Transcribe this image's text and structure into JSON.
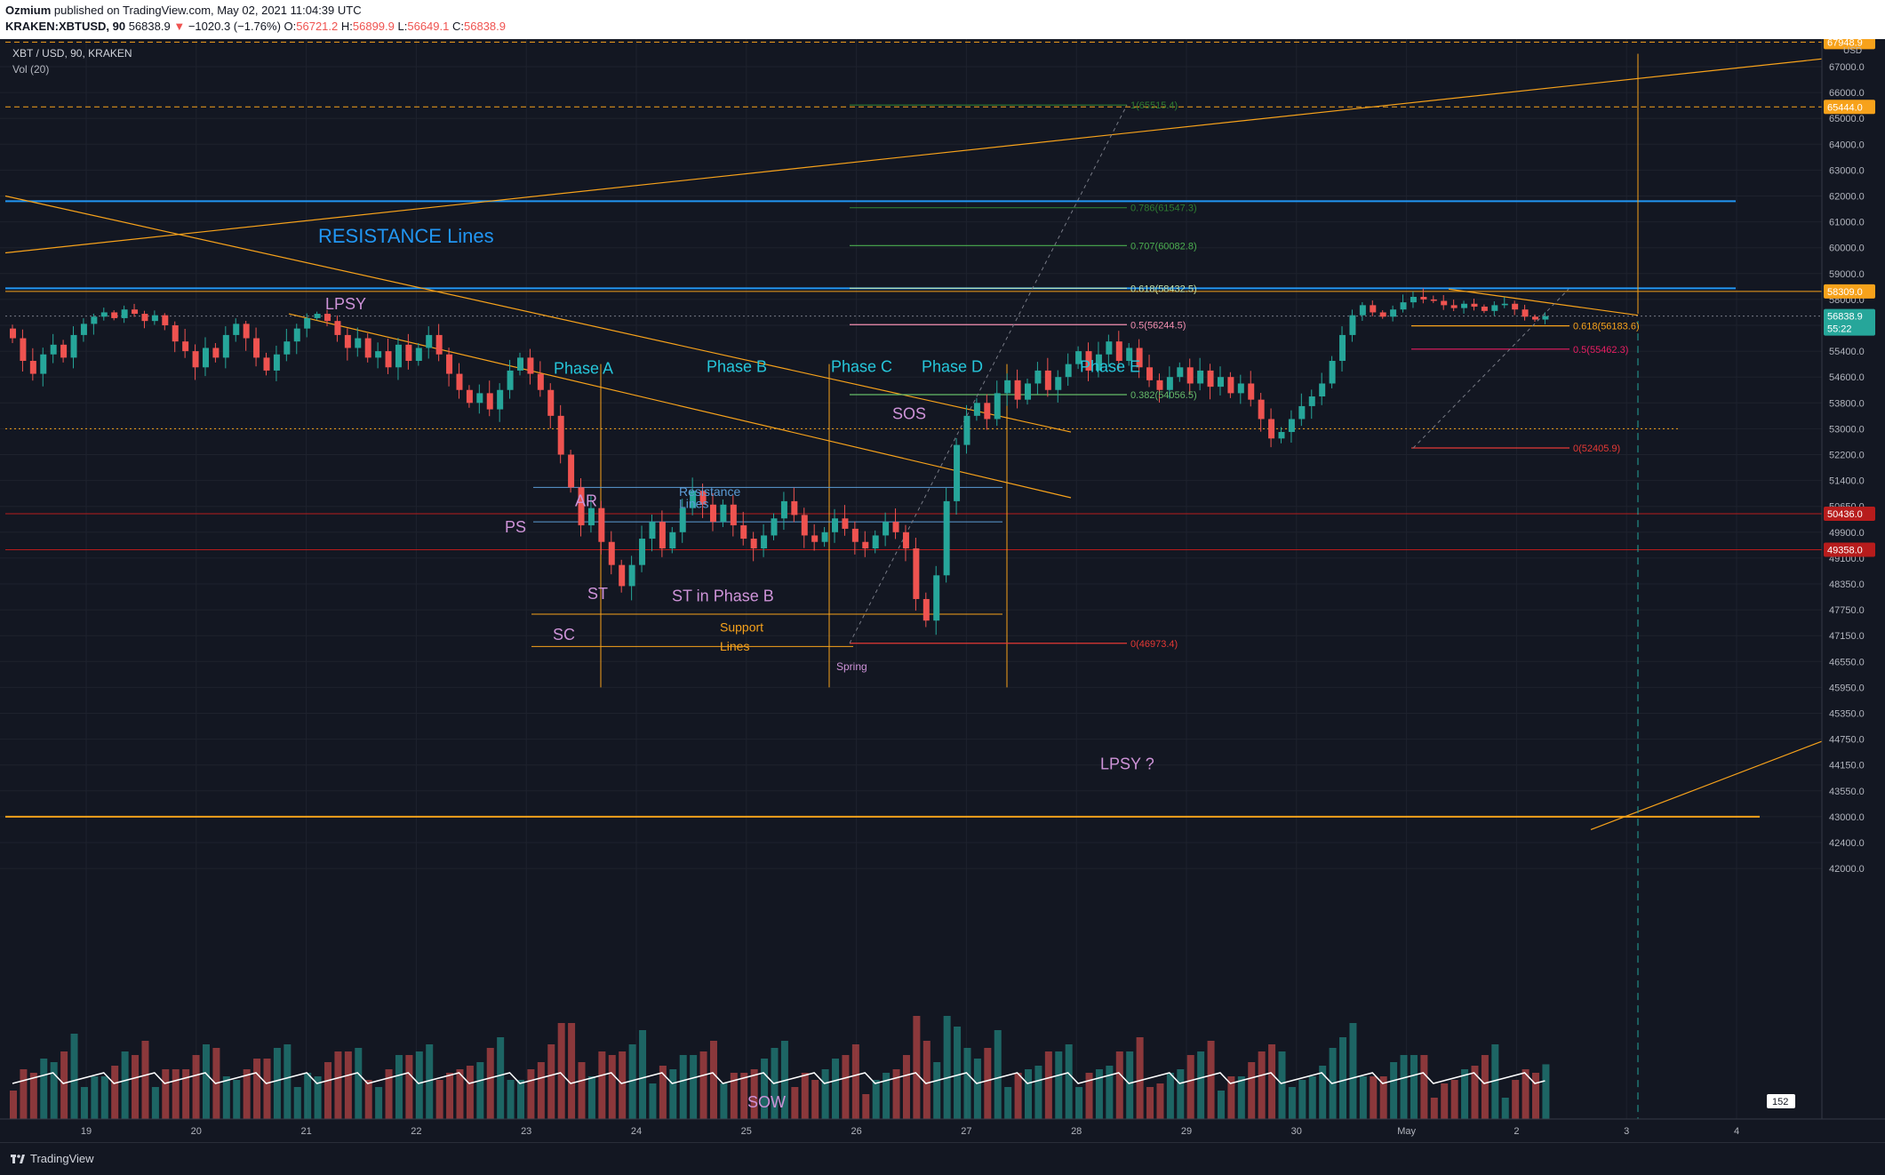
{
  "header": {
    "author": "Ozmium",
    "published_text": "published on TradingView.com, May 02, 2021 11:04:39 UTC",
    "symbol": "KRAKEN:XBTUSD, 90",
    "last_price": "56838.9",
    "change_arrow": "▼",
    "change": "−1020.3 (−1.76%)",
    "open_label": "O:",
    "open": "56721.2",
    "high_label": "H:",
    "high": "56899.9",
    "low_label": "L:",
    "low": "56649.1",
    "close_label": "C:",
    "close": "56838.9"
  },
  "chart_legend": {
    "title": "XBT / USD, 90, KRAKEN",
    "volume_label": "Vol (20)",
    "currency": "USD"
  },
  "footer": {
    "brand": "TradingView"
  },
  "colors": {
    "background": "#131722",
    "up": "#26a69a",
    "down": "#ef5350",
    "orange": "#f7a21b",
    "blue": "#2196f3",
    "purple": "#ce93d8",
    "teal_label": "#26c6da"
  },
  "chart_data": {
    "type": "candlestick",
    "price_axis_ticks": [
      67000,
      66000,
      65000,
      64000,
      63000,
      62000,
      61000,
      60000,
      59000,
      58000,
      56200,
      55400,
      54600,
      53800,
      53000,
      52200,
      51400,
      50650,
      49900,
      49100,
      48350,
      47750,
      47150,
      46550,
      45950,
      45350,
      44750,
      44150,
      43550,
      43000,
      42400,
      42000
    ],
    "price_axis_labels": [
      "67000.0",
      "66000.0",
      "65000.0",
      "64000.0",
      "63000.0",
      "62000.0",
      "61000.0",
      "60000.0",
      "59000.0",
      "58000.0",
      "56200.0",
      "55400.0",
      "54600.0",
      "53800.0",
      "53000.0",
      "52200.0",
      "51400.0",
      "50650.0",
      "49900.0",
      "49100.0",
      "48350.0",
      "47750.0",
      "47150.0",
      "46550.0",
      "45950.0",
      "45350.0",
      "44750.0",
      "44150.0",
      "43550.0",
      "43000.0",
      "42400.0",
      "42000.0"
    ],
    "x_tick_labels": [
      "19",
      "20",
      "21",
      "22",
      "23",
      "24",
      "25",
      "26",
      "27",
      "28",
      "29",
      "30",
      "May",
      "2",
      "3",
      "4"
    ],
    "price_badges": [
      {
        "value": "67948.9",
        "color": "#f7a21b"
      },
      {
        "value": "65444.0",
        "color": "#f7a21b"
      },
      {
        "value": "58309.0",
        "color": "#f7a21b"
      },
      {
        "value": "56838.9",
        "extra": "55:22",
        "color": "#26a69a"
      },
      {
        "value": "50436.0",
        "color": "#b71c1c"
      },
      {
        "value": "49358.0",
        "color": "#b71c1c"
      }
    ],
    "volume_badge": "152",
    "closes": [
      55800,
      55100,
      54700,
      55300,
      55600,
      55200,
      55900,
      56300,
      56800,
      57100,
      56700,
      57300,
      57000,
      56500,
      56900,
      56200,
      55700,
      55400,
      54900,
      55500,
      55200,
      55900,
      56300,
      55800,
      55200,
      54800,
      55300,
      55700,
      56100,
      56700,
      57000,
      56500,
      55900,
      55500,
      55800,
      55200,
      55400,
      54900,
      55600,
      55100,
      55500,
      55900,
      55300,
      54700,
      54200,
      53800,
      54100,
      53600,
      54200,
      54800,
      55200,
      54700,
      54200,
      53400,
      52200,
      51200,
      50100,
      50600,
      49600,
      48900,
      48300,
      48900,
      49700,
      50200,
      49400,
      49900,
      50600,
      51100,
      50700,
      50200,
      50700,
      50100,
      49700,
      49400,
      49800,
      50300,
      50800,
      50400,
      49800,
      49600,
      49900,
      50300,
      50000,
      49600,
      49400,
      49800,
      50200,
      49900,
      49400,
      48000,
      47500,
      48600,
      50800,
      52500,
      53400,
      53800,
      53300,
      54100,
      54500,
      53900,
      54400,
      54800,
      54200,
      54600,
      55000,
      55400,
      54800,
      55300,
      55700,
      55100,
      55500,
      54900,
      54500,
      54200,
      54600,
      54900,
      54400,
      54800,
      54300,
      54600,
      54100,
      54400,
      53900,
      53300,
      52700,
      52900,
      53300,
      53700,
      54000,
      54400,
      55100,
      55900,
      56900,
      57600,
      57100,
      56800,
      57300,
      57800,
      58100,
      58000,
      57900,
      57600,
      57400,
      57700,
      57500,
      57200,
      57600,
      57700,
      57300,
      56800,
      56600,
      56839
    ],
    "annotations": {
      "resistance_title": "RESISTANCE Lines",
      "lpsy": "LPSY",
      "lpsy_q": "LPSY ?",
      "phase_a": "Phase A",
      "phase_b": "Phase B",
      "phase_c": "Phase C",
      "phase_d": "Phase D",
      "phase_e": "Phase E",
      "sos": "SOS",
      "ar": "AR",
      "ps": "PS",
      "st": "ST",
      "st_phase_b": "ST in Phase B",
      "sc": "SC",
      "support_lines_1": "Support",
      "support_lines_2": "Lines",
      "resistance_lines_1": "Resistance",
      "resistance_lines_2": "Lines",
      "spring": "Spring",
      "sow": "SOW"
    },
    "fib_left": [
      {
        "label": "1(65515.4)",
        "price": 65515.4,
        "color": "#2e7d32"
      },
      {
        "label": "0.786(61547.3)",
        "price": 61547.3,
        "color": "#2e7d32"
      },
      {
        "label": "0.707(60082.8)",
        "price": 60082.8,
        "color": "#4caf50"
      },
      {
        "label": "0.618(58432.5)",
        "price": 58432.5,
        "color": "#c5e1a5"
      },
      {
        "label": "0.5(56244.5)",
        "price": 56244.5,
        "color": "#f48fb1"
      },
      {
        "label": "0.382(54056.5)",
        "price": 54056.5,
        "color": "#66bb6a"
      },
      {
        "label": "0(46973.4)",
        "price": 46973.4,
        "color": "#e53935"
      }
    ],
    "fib_right": [
      {
        "label": "0.618(56183.6)",
        "price": 56183.6,
        "color": "#f7a21b"
      },
      {
        "label": "0.5(55462.3)",
        "price": 55462.3,
        "color": "#e91e63"
      },
      {
        "label": "0(52405.9)",
        "price": 52405.9,
        "color": "#e53935"
      }
    ]
  }
}
